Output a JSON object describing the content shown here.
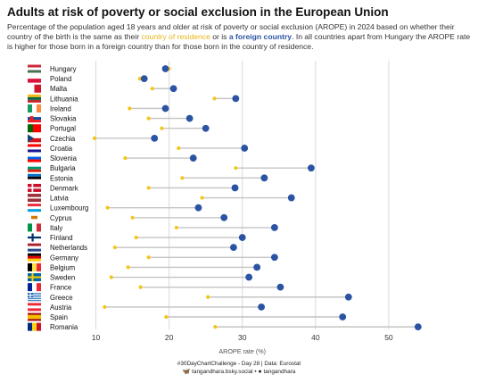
{
  "header": {
    "title": "Adults at risk of poverty or social exclusion in the European Union",
    "subtitle_part1": "Percentage of the population aged 18 years and older at risk of poverty or social exclusion (AROPE) in 2024 based on whether their country of the birth is the same as their ",
    "subtitle_residence": "country of residence",
    "subtitle_part2": " or is ",
    "subtitle_foreign": "a foreign country",
    "subtitle_part3": ". In all countries apart from Hungary the AROPE rate is higher for those born in a foreign country than for those born in the country of residence."
  },
  "footer": {
    "line1": "#30DayChartChallenge - Day 28 | Data: Eurostat",
    "bsky_icon": "butterfly-icon",
    "bsky": "tangandhara.bsky.social",
    "sep": "•",
    "github_icon": "github-icon",
    "github": "tangandhara"
  },
  "colors": {
    "residence": "#f5c518",
    "foreign": "#2b53a3",
    "segment": "#c4c4c4",
    "grid": "#d9d9d9"
  },
  "chart_data": {
    "type": "dumbbell",
    "xlabel": "AROPE rate (%)",
    "xlim": [
      7.5,
      55
    ],
    "xticks": [
      10,
      20,
      30,
      40,
      50
    ],
    "grid": true,
    "series": [
      {
        "name": "country of residence",
        "color": "#f5c518"
      },
      {
        "name": "a foreign country",
        "color": "#2b53a3"
      }
    ],
    "rows": [
      {
        "country": "Hungary",
        "residence": 20.0,
        "foreign": 19.5,
        "flag": "flag-hungary-icon"
      },
      {
        "country": "Poland",
        "residence": 16.0,
        "foreign": 16.6,
        "flag": "flag-poland-icon"
      },
      {
        "country": "Malta",
        "residence": 17.7,
        "foreign": 20.6,
        "flag": "flag-malta-icon"
      },
      {
        "country": "Lithuania",
        "residence": 26.2,
        "foreign": 29.1,
        "flag": "flag-lithuania-icon"
      },
      {
        "country": "Ireland",
        "residence": 14.6,
        "foreign": 19.5,
        "flag": "flag-ireland-icon"
      },
      {
        "country": "Slovakia",
        "residence": 17.2,
        "foreign": 22.8,
        "flag": "flag-slovakia-icon"
      },
      {
        "country": "Portugal",
        "residence": 19.0,
        "foreign": 25.0,
        "flag": "flag-portugal-icon"
      },
      {
        "country": "Czechia",
        "residence": 9.8,
        "foreign": 18.0,
        "flag": "flag-czechia-icon"
      },
      {
        "country": "Croatia",
        "residence": 21.3,
        "foreign": 30.3,
        "flag": "flag-croatia-icon"
      },
      {
        "country": "Slovenia",
        "residence": 14.0,
        "foreign": 23.3,
        "flag": "flag-slovenia-icon"
      },
      {
        "country": "Bulgaria",
        "residence": 29.1,
        "foreign": 39.4,
        "flag": "flag-bulgaria-icon"
      },
      {
        "country": "Estonia",
        "residence": 21.8,
        "foreign": 33.0,
        "flag": "flag-estonia-icon"
      },
      {
        "country": "Denmark",
        "residence": 17.2,
        "foreign": 29.0,
        "flag": "flag-denmark-icon"
      },
      {
        "country": "Latvia",
        "residence": 24.5,
        "foreign": 36.7,
        "flag": "flag-latvia-icon"
      },
      {
        "country": "Luxembourg",
        "residence": 11.6,
        "foreign": 24.0,
        "flag": "flag-luxembourg-icon"
      },
      {
        "country": "Cyprus",
        "residence": 15.0,
        "foreign": 27.5,
        "flag": "flag-cyprus-icon"
      },
      {
        "country": "Italy",
        "residence": 21.0,
        "foreign": 34.4,
        "flag": "flag-italy-icon"
      },
      {
        "country": "Finland",
        "residence": 15.5,
        "foreign": 30.0,
        "flag": "flag-finland-icon"
      },
      {
        "country": "Netherlands",
        "residence": 12.6,
        "foreign": 28.8,
        "flag": "flag-netherlands-icon"
      },
      {
        "country": "Germany",
        "residence": 17.2,
        "foreign": 34.4,
        "flag": "flag-germany-icon"
      },
      {
        "country": "Belgium",
        "residence": 14.4,
        "foreign": 32.0,
        "flag": "flag-belgium-icon"
      },
      {
        "country": "Sweden",
        "residence": 12.1,
        "foreign": 30.9,
        "flag": "flag-sweden-icon"
      },
      {
        "country": "France",
        "residence": 16.1,
        "foreign": 35.2,
        "flag": "flag-france-icon"
      },
      {
        "country": "Greece",
        "residence": 25.3,
        "foreign": 44.5,
        "flag": "flag-greece-icon"
      },
      {
        "country": "Austria",
        "residence": 11.2,
        "foreign": 32.6,
        "flag": "flag-austria-icon"
      },
      {
        "country": "Spain",
        "residence": 19.6,
        "foreign": 43.7,
        "flag": "flag-spain-icon"
      },
      {
        "country": "Romania",
        "residence": 26.3,
        "foreign": 54.0,
        "flag": "flag-romania-icon"
      }
    ]
  }
}
